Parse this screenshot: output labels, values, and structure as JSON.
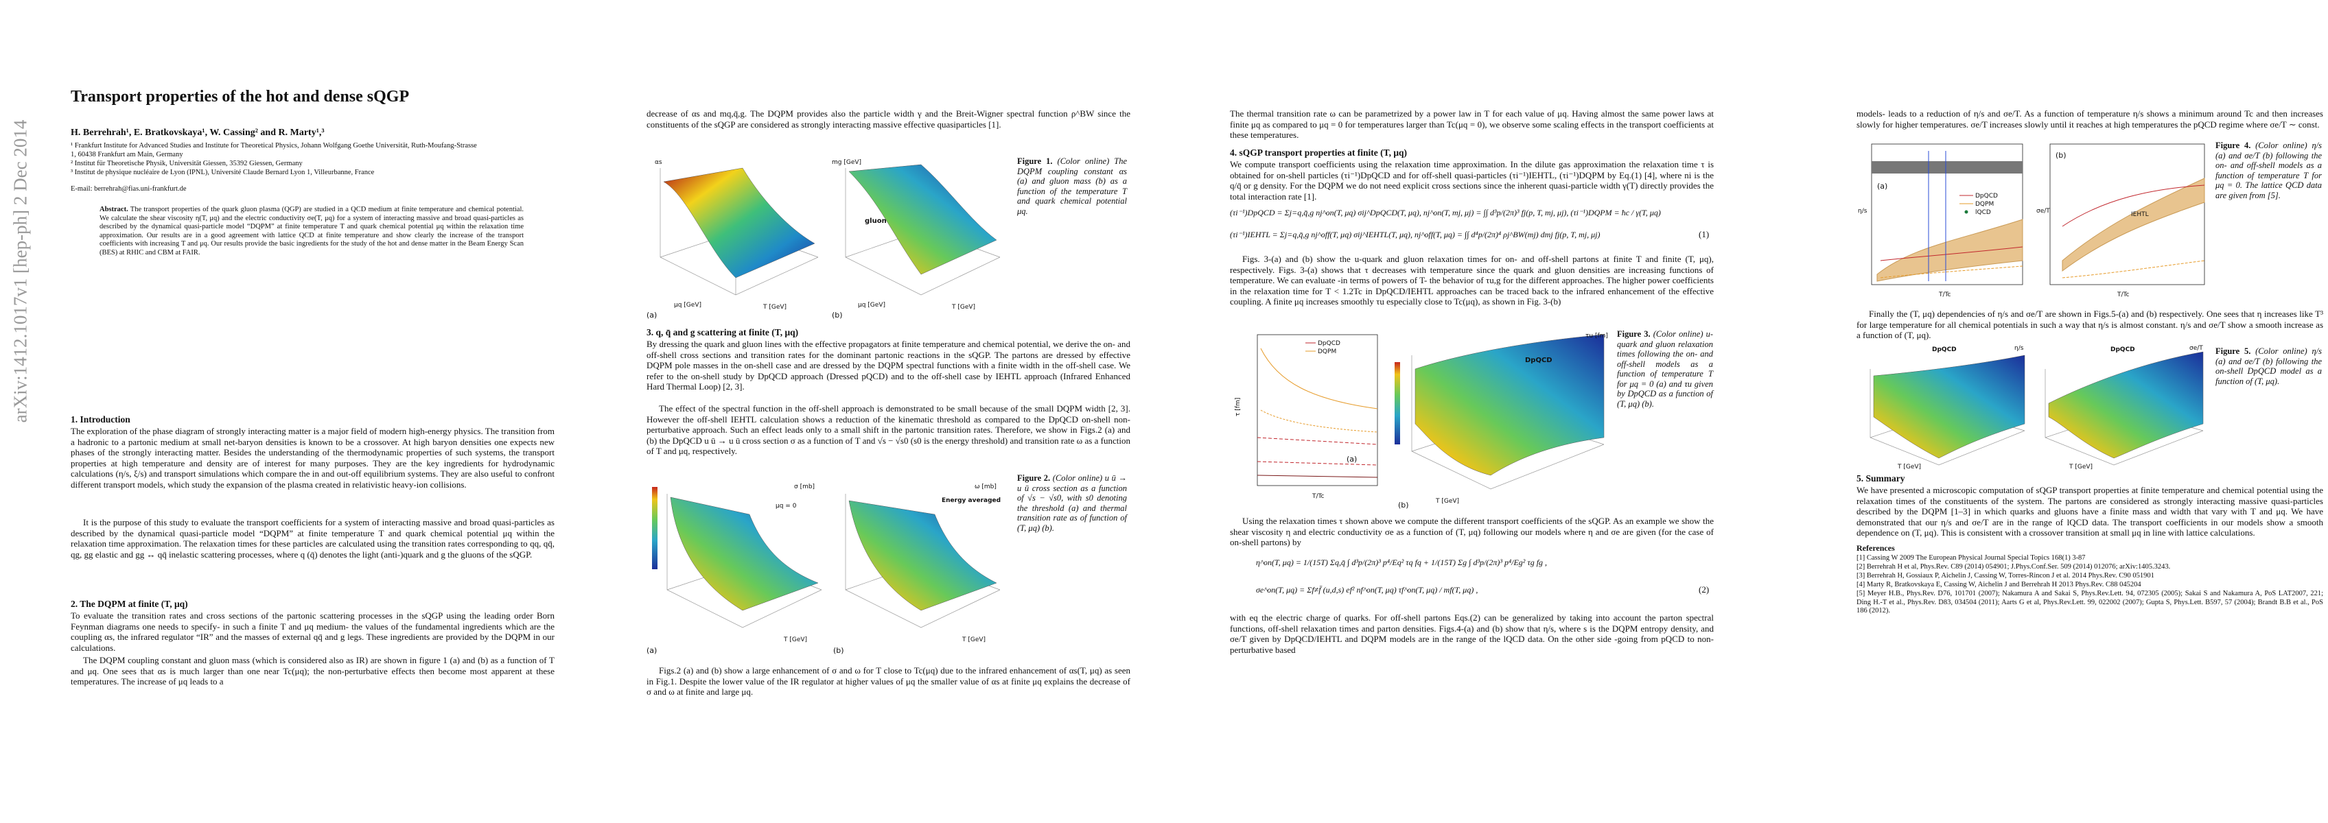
{
  "arxiv_stamp": "arXiv:1412.1017v1  [hep-ph]  2 Dec 2014",
  "page1": {
    "title": "Transport properties of the hot and dense sQGP",
    "authors": "H. Berrehrah¹, E. Bratkovskaya¹, W. Cassing² and R. Marty¹,³",
    "affiliations": [
      "¹ Frankfurt Institute for Advanced Studies and Institute for Theoretical Physics, Johann Wolfgang Goethe Universität, Ruth-Moufang-Strasse 1, 60438 Frankfurt am Main, Germany",
      "² Institut für Theoretische Physik, Universität Giessen, 35392 Giessen, Germany",
      "³ Institut de physique nucléaire de Lyon (IPNL), Université Claude Bernard Lyon 1, Villeurbanne, France"
    ],
    "email": "E-mail: berrehrah@fias.uni-frankfurt.de",
    "abstract": {
      "label": "Abstract.",
      "text": "The transport properties of the quark gluon plasma (QGP) are studied in a QCD medium at finite temperature and chemical potential. We calculate the shear viscosity η(T, μq) and the electric conductivity σe(T, μq) for a system of interacting massive and broad quasi-particles as described by the dynamical quasi-particle model “DQPM” at finite temperature T and quark chemical potential μq within the relaxation time approximation. Our results are in a good agreement with lattice QCD at finite temperature and show clearly the increase of the transport coefficients with increasing T and μq. Our results provide the basic ingredients for the study of the hot and dense matter in the Beam Energy Scan (BES) at RHIC and CBM at FAIR."
    },
    "sections": [
      {
        "heading": "1. Introduction",
        "paragraphs": [
          "The exploration of the phase diagram of strongly interacting matter is a major field of modern high-energy physics. The transition from a hadronic to a partonic medium at small net-baryon densities is known to be a crossover. At high baryon densities one expects new phases of the strongly interacting matter. Besides the understanding of the thermodynamic properties of such systems, the transport properties at high temperature and density are of interest for many purposes. They are the key ingredients for hydrodynamic calculations (η/s, ξ/s) and transport simulations which compare the in and out-off equilibrium systems. They are also useful to confront different transport models, which study the expansion of the plasma created in relativistic heavy-ion collisions.",
          "It is the purpose of this study to evaluate the transport coefficients for a system of interacting massive and broad quasi-particles as described by the dynamical quasi-particle model “DQPM” at finite temperature T and quark chemical potential μq within the relaxation time approximation. The relaxation times for these particles are calculated using the transition rates corresponding to qq, qq̄, qg, gg elastic and gg ↔ qq̄ inelastic scattering processes, where q (q̄) denotes the light (anti-)quark and g the gluons of the sQGP."
        ]
      },
      {
        "heading": "2. The DQPM at finite (T, μq)",
        "paragraphs": [
          "To evaluate the transition rates and cross sections of the partonic scattering processes in the sQGP using the leading order Born Feynman diagrams one needs to specify- in such a finite T and μq medium- the values of the fundamental ingredients which are the coupling αs, the infrared regulator “IR” and the masses of external qq̄ and g legs. These ingredients are provided by the DQPM in our calculations.",
          "The DQPM coupling constant and gluon mass (which is considered also as IR) are shown in figure 1 (a) and (b) as a function of T and μq. One sees that αs is much larger than one near Tc(μq); the non-perturbative effects then become most apparent at these temperatures. The increase of μq leads to a"
        ]
      }
    ]
  },
  "page2": {
    "top_paragraph": "decrease of αs and mq,q̄,g. The DQPM provides also the particle width γ and the Breit-Wigner spectral function ρ^BW since the constituents of the sQGP are considered as strongly interacting massive effective quasiparticles [1].",
    "figure1": {
      "caption_label": "Figure 1.",
      "caption": "(Color online) The DQPM coupling constant αs (a) and gluon mass (b) as a function of the temperature T and quark chemical potential μq.",
      "panel_a": "(a)",
      "panel_b": "(b)",
      "zlabel_a": "αs",
      "zlabel_b": "mg [GeV]",
      "inner_label_b": "gluon",
      "xlabel": "T [GeV]",
      "ylabel": "μq [GeV]"
    },
    "section3": {
      "heading": "3. q, q̄ and g scattering at finite (T, μq)",
      "paragraphs": [
        "By dressing the quark and gluon lines with the effective propagators at finite temperature and chemical potential, we derive the on- and off-shell cross sections and transition rates for the dominant partonic reactions in the sQGP. The partons are dressed by effective DQPM pole masses in the on-shell case and are dressed by the DQPM spectral functions with a finite width in the off-shell case. We refer to the on-shell study by DpQCD approach (Dressed pQCD) and to the off-shell case by IEHTL approach (Infrared Enhanced Hard Thermal Loop) [2, 3].",
        "The effect of the spectral function in the off-shell approach is demonstrated to be small because of the small DQPM width [2, 3]. However the off-shell IEHTL calculation shows a reduction of the kinematic threshold as compared to the DpQCD on-shell non-perturbative approach. Such an effect leads only to a small shift in the partonic transition rates. Therefore, we show in Figs.2 (a) and (b) the DpQCD u ū → u ū cross section σ as a function of T and √s − √s0 (s0 is the energy threshold) and transition rate ω as a function of T and μq, respectively."
      ]
    },
    "figure2": {
      "caption_label": "Figure 2.",
      "caption": "(Color online) u ū → u ū cross section as a function of √s − √s0, with s0 denoting the threshold (a) and thermal transition rate as of function of (T, μq) (b).",
      "panel_a": "(a)",
      "panel_b": "(b)",
      "zlabel_a": "σ [mb]",
      "zlabel_b": "ω [mb]",
      "inner_label_a": "μq = 0",
      "inner_label_b": "Energy averaged",
      "xlabel": "T [GeV]"
    },
    "bottom_paragraph": "Figs.2 (a) and (b) show a large enhancement of σ and ω for T close to Tc(μq) due to the infrared enhancement of αs(T, μq) as seen in Fig.1. Despite the lower value of the IR regulator at higher values of μq the smaller value of αs at finite μq explains the decrease of σ and ω at finite and large μq."
  },
  "page3": {
    "top_paragraph": "The thermal transition rate ω can be parametrized by a power law in T for each value of μq. Having almost the same power laws at finite μq as compared to μq = 0 for temperatures larger than Tc(μq = 0), we observe some scaling effects in the transport coefficients at these temperatures.",
    "section4": {
      "heading": "4. sQGP transport properties at finite (T, μq)",
      "paragraph": "We compute transport coefficients using the relaxation time approximation. In the dilute gas approximation the relaxation time τ is obtained for on-shell particles (τi⁻¹)DpQCD and for off-shell quasi-particles (τi⁻¹)IEHTL, (τi⁻¹)DQPM by Eq.(1) [4], where ni is the q/q̄ or g density. For the DQPM we do not need explicit cross sections since the inherent quasi-particle width γ(T) directly provides the total interaction rate [1]."
    },
    "equation1": {
      "lines": [
        "(τi⁻¹)DpQCD = Σj=q,q̄,g nj^on(T, μq) σij^DpQCD(T, μq),   nj^on(T, mj, μj) = ∫∫ d³p/(2π)³ fj(p, T, mj, μj),   (τi⁻¹)DQPM = ħc / γ(T, μq)",
        "(τi⁻¹)IEHTL = Σj=q,q̄,g nj^off(T, μq) σij^IEHTL(T, μq),   nj^off(T, μq) = ∫∫ d⁴p/(2π)⁴ ρj^BW(mj) dmj fj(p, T, mj, μj)"
      ],
      "number": "(1)"
    },
    "middle_paragraph": "Figs. 3-(a) and (b) show the u-quark and gluon relaxation times for on- and off-shell partons at finite T and finite (T, μq), respectively. Figs. 3-(a) shows that τ decreases with temperature since the quark and gluon densities are increasing functions of temperature. We can evaluate -in terms of powers of T- the behavior of τu,g for the different approaches. The higher power coefficients in the relaxation time for T < 1.2Tc in DpQCD/IEHTL approaches can be traced back to the infrared enhancement of the effective coupling. A finite μq increases smoothly τu especially close to Tc(μq), as shown in Fig. 3-(b)",
    "figure3": {
      "caption_label": "Figure 3.",
      "caption": "(Color online) u-quark and gluon relaxation times following the on- and off-shell models as a function of temperature T for μq = 0 (a) and τu given by DpQCD as a function of (T, μq) (b).",
      "panel_a": "(a)",
      "panel_b": "(b)",
      "legend": [
        "DpQCD",
        "DQPM"
      ],
      "ylabel_a": "τ [fm]",
      "xlabel_a": "T/Tc",
      "zlabel_b": "τu [fm]",
      "inner_label_b": "DpQCD",
      "xlabel_b": "T [GeV]"
    },
    "paragraph_before_eq2": "Using the relaxation times τ shown above we compute the different transport coefficients of the sQGP. As an example we show the shear viscosity η and electric conductivity σe as a function of (T, μq) following our models where η and σe are given (for the case of on-shell partons) by",
    "equation2": {
      "lines": [
        "η^on(T, μq) = 1/(15T) Σq,q̄ ∫ d³p/(2π)³ p⁴/Eq² τq fq + 1/(15T) Σg ∫ d³p/(2π)³ p⁴/Eg² τg fg ,",
        "σe^on(T, μq) = Σf≠f̄ (u,d,s) ef² nf^on(T, μq) τf^on(T, μq) / mf(T, μq) ,"
      ],
      "number": "(2)"
    },
    "bottom_paragraph": "with eq the electric charge of quarks. For off-shell partons Eqs.(2) can be generalized by taking into account the parton spectral functions, off-shell relaxation times and parton densities. Figs.4-(a) and (b) show that η/s, where s is the DQPM entropy density, and σe/T given by DpQCD/IEHTL and DQPM models are in the range of the lQCD data. On the other side -going from pQCD to non-perturbative based"
  },
  "page4": {
    "top_paragraph": "models- leads to a reduction of η/s and σe/T. As a function of temperature η/s shows a minimum around Tc and then increases slowly for higher temperatures. σe/T increases slowly until it reaches at high temperatures the pQCD regime where σe/T ∼ const.",
    "figure4": {
      "caption_label": "Figure 4.",
      "caption": "(Color online) η/s (a) and σe/T (b) following the on- and off-shell models as a function of temperature T for μq = 0. The lattice QCD data are given from [5].",
      "panel_a": "(a)",
      "panel_b": "(b)",
      "legend": [
        "DpQCD",
        "DQPM",
        "lQCD"
      ],
      "band_label": "IEHTL",
      "xlabel": "T/Tc",
      "ylabel_a": "η/s",
      "ylabel_b": "σe/T"
    },
    "middle_paragraph": "Finally the (T, μq) dependencies of η/s and σe/T are shown in Figs.5-(a) and (b) respectively. One sees that η increases like T³ for large temperature for all chemical potentials in such a way that η/s is almost constant. η/s and σe/T show a smooth increase as a function of (T, μq).",
    "figure5": {
      "caption_label": "Figure 5.",
      "caption": "(Color online) η/s (a) and σe/T (b) following the on-shell DpQCD model as a function of (T, μq).",
      "panel_a": "(a)",
      "panel_b": "(b)",
      "title_a": "DpQCD",
      "title_b": "DpQCD",
      "zlabel_a": "η/s",
      "zlabel_b": "σe/T",
      "xlabel": "T [GeV]"
    },
    "summary": {
      "heading": "5. Summary",
      "paragraph": "We have presented a microscopic computation of sQGP transport properties at finite temperature and chemical potential using the relaxation times of the constituents of the system. The partons are considered as strongly interacting massive quasi-particles described by the DQPM [1–3] in which quarks and gluons have a finite mass and width that vary with T and μq. We have demonstrated that our η/s and σe/T are in the range of lQCD data. The transport coefficients in our models show a smooth dependence on (T, μq). This is consistent with a crossover transition at small μq in line with lattice calculations."
    },
    "references": {
      "heading": "References",
      "items": [
        "[1]  Cassing W 2009 The European Physical Journal Special Topics 168(1) 3-87",
        "[2]  Berrehrah H et al, Phys.Rev. C89 (2014) 054901; J.Phys.Conf.Ser. 509 (2014) 012076; arXiv:1405.3243.",
        "[3]  Berrehrah H, Gossiaux P, Aichelin J, Cassing W, Torres-Rincon J et al. 2014 Phys.Rev. C90 051901",
        "[4]  Marty R, Bratkovskaya E, Cassing W, Aichelin J and Berrehrah H 2013 Phys.Rev. C88 045204",
        "[5]  Meyer H.B., Phys.Rev. D76, 101701 (2007); Nakamura A and Sakai S, Phys.Rev.Lett. 94, 072305 (2005); Sakai S and Nakamura A, PoS LAT2007, 221; Ding H.-T et al., Phys.Rev. D83, 034504 (2011); Aarts G et al, Phys.Rev.Lett. 99, 022002 (2007); Gupta S, Phys.Lett. B597, 57 (2004); Brandt B.B et al., PoS 186 (2012)."
      ]
    }
  }
}
